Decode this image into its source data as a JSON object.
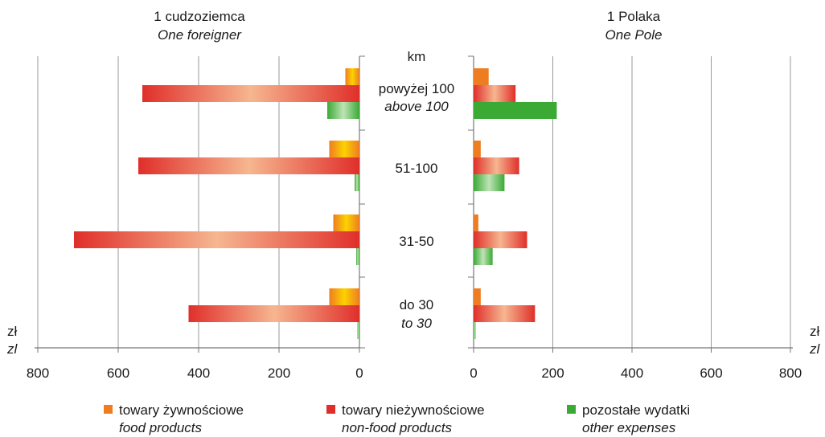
{
  "chart_data": {
    "type": "bar",
    "orientation": "horizontal",
    "layout": "butterfly",
    "left_panel": {
      "title": "1 cudzoziemca",
      "subtitle": "One foreigner",
      "xlim": [
        0,
        800
      ],
      "ticks": [
        "800",
        "600",
        "400",
        "200",
        "0"
      ],
      "unit": "zł",
      "unit_en": "zl",
      "values": {
        "food": [
          35,
          75,
          65,
          75
        ],
        "nonfood": [
          540,
          550,
          710,
          425
        ],
        "other": [
          80,
          12,
          8,
          5
        ]
      }
    },
    "right_panel": {
      "title": "1 Polaka",
      "subtitle": "One Pole",
      "xlim": [
        0,
        800
      ],
      "ticks": [
        "0",
        "200",
        "400",
        "600",
        "800"
      ],
      "unit": "zł",
      "unit_en": "zl",
      "values": {
        "food": [
          38,
          18,
          12,
          18
        ],
        "nonfood": [
          106,
          115,
          135,
          155
        ],
        "other": [
          210,
          78,
          48,
          5
        ]
      }
    },
    "center_axis": {
      "header": "km",
      "categories": [
        {
          "pl": "powyżej 100",
          "en": "above 100"
        },
        {
          "pl": "51-100",
          "en": ""
        },
        {
          "pl": "31-50",
          "en": ""
        },
        {
          "pl": "do 30",
          "en": "to 30"
        }
      ]
    },
    "series": [
      {
        "key": "food",
        "name": "towary żywnościowe",
        "name_en": "food products",
        "color": "#ee7d22",
        "inner": "#fcd200"
      },
      {
        "key": "nonfood",
        "name": "towary nieżywnościowe",
        "name_en": "non-food products",
        "color": "#e02f2a",
        "inner": "#f6b690"
      },
      {
        "key": "other",
        "name": "pozostałe wydatki",
        "name_en": "other expenses",
        "color": "#3aaa35",
        "inner": "#bfe3b6"
      }
    ],
    "grid": true,
    "legend_position": "bottom"
  }
}
